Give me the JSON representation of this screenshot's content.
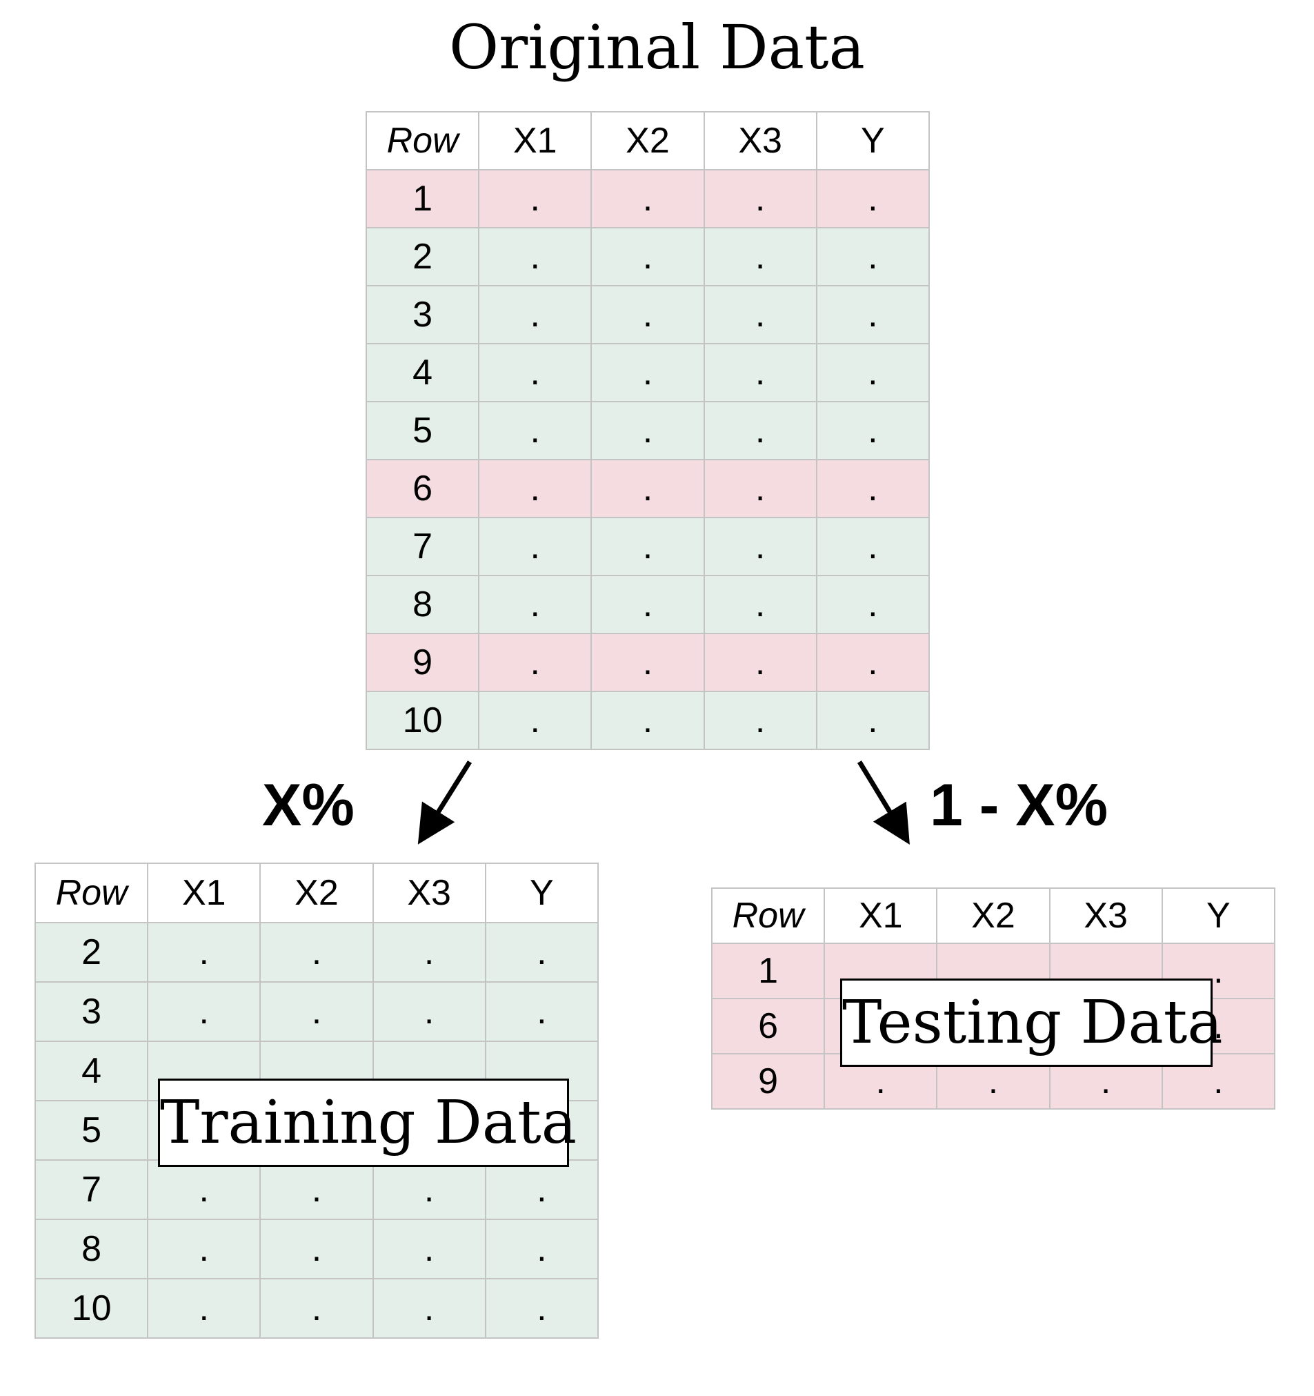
{
  "title": "Original Data",
  "columns": [
    "Row",
    "X1",
    "X2",
    "X3",
    "Y"
  ],
  "cell_placeholder": ".",
  "colors": {
    "training_row": "#e5efea",
    "testing_row": "#f5dce0",
    "grid_line": "#c4c4c4"
  },
  "original_table": {
    "rows": [
      {
        "row": "1",
        "split": "test"
      },
      {
        "row": "2",
        "split": "train"
      },
      {
        "row": "3",
        "split": "train"
      },
      {
        "row": "4",
        "split": "train"
      },
      {
        "row": "5",
        "split": "train"
      },
      {
        "row": "6",
        "split": "test"
      },
      {
        "row": "7",
        "split": "train"
      },
      {
        "row": "8",
        "split": "train"
      },
      {
        "row": "9",
        "split": "test"
      },
      {
        "row": "10",
        "split": "train"
      }
    ]
  },
  "training": {
    "split_label": "X%",
    "box_label": "Training Data",
    "rows": [
      "2",
      "3",
      "4",
      "5",
      "7",
      "8",
      "10"
    ]
  },
  "testing": {
    "split_label": "1 - X%",
    "box_label": "Testing Data",
    "rows": [
      "1",
      "6",
      "9"
    ]
  }
}
